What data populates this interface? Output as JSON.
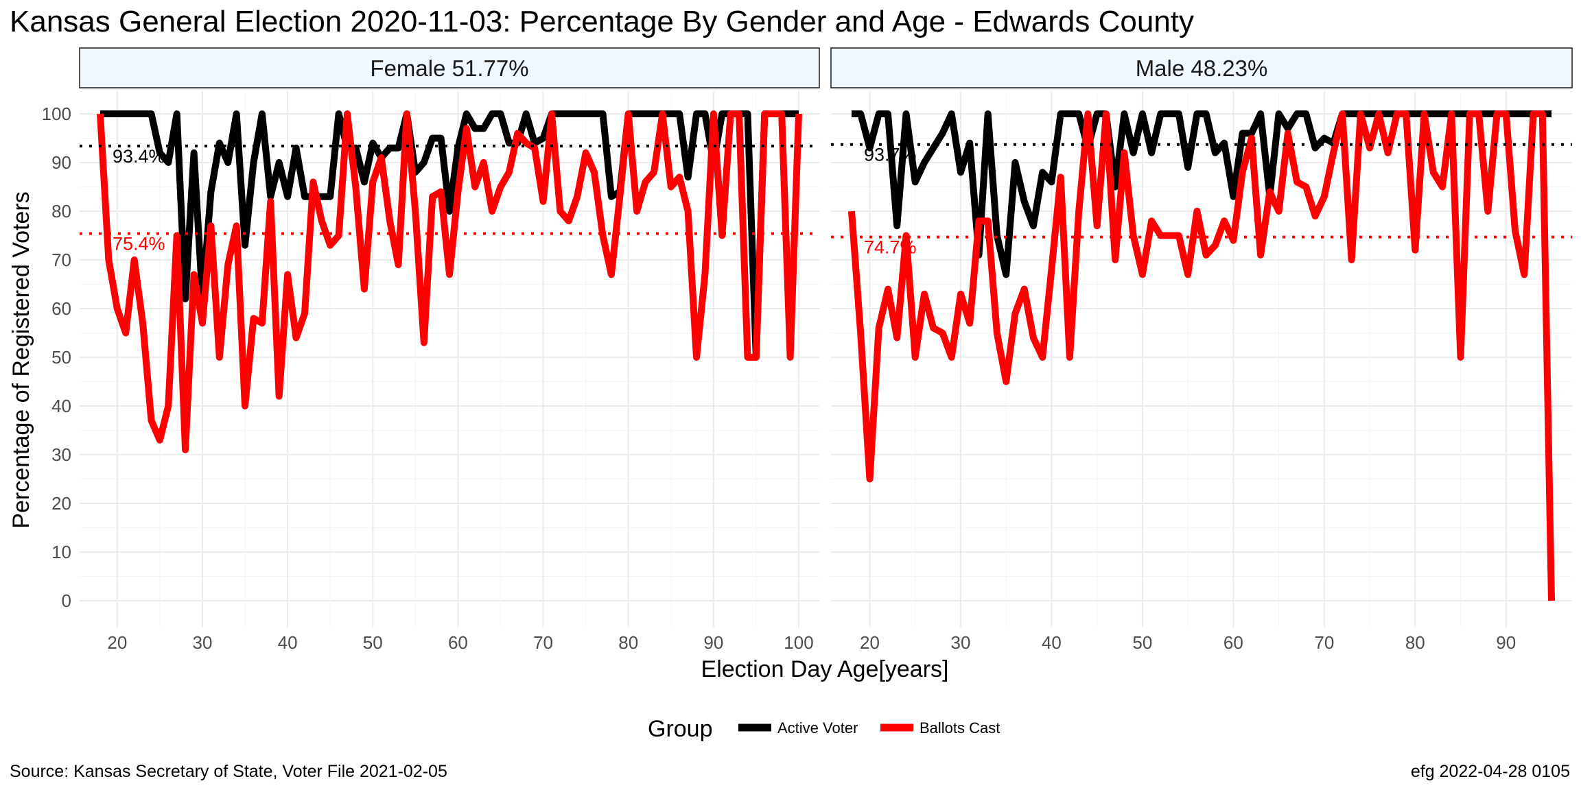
{
  "title": "Kansas General Election 2020-11-03:  Percentage By Gender and Age - Edwards County",
  "caption_left": "Source:  Kansas Secretary of State, Voter File  2021-02-05",
  "caption_right": "efg 2022-04-28 0105",
  "colors": {
    "active": "#000000",
    "ballots": "#ff0000",
    "strip_fill": "#f0f8ff",
    "grid": "#ebebeb"
  },
  "chart_data": {
    "type": "line",
    "xlabel": "Election Day Age[years]",
    "ylabel": "Percentage of Registered Voters",
    "ylim": [
      0,
      100
    ],
    "yticks": [
      0,
      10,
      20,
      30,
      40,
      50,
      60,
      70,
      80,
      90,
      100
    ],
    "grid": true,
    "legend": {
      "title": "Group",
      "position": "bottom",
      "items": [
        {
          "label": "Active Voter",
          "color": "#000000"
        },
        {
          "label": "Ballots Cast",
          "color": "#ff0000"
        }
      ]
    },
    "panels": [
      {
        "strip": "Female 51.77%",
        "xlim": [
          18,
          100
        ],
        "xticks": [
          20,
          30,
          40,
          50,
          60,
          70,
          80,
          90,
          100
        ],
        "ref_lines": [
          {
            "series": "Active Voter",
            "value": 93.4,
            "label": "93.4%"
          },
          {
            "series": "Ballots Cast",
            "value": 75.4,
            "label": "75.4%"
          }
        ],
        "series": [
          {
            "name": "Active Voter",
            "x": [
              18,
              19,
              20,
              21,
              22,
              23,
              24,
              25,
              26,
              27,
              28,
              29,
              30,
              31,
              32,
              33,
              34,
              35,
              36,
              37,
              38,
              39,
              40,
              41,
              42,
              43,
              44,
              45,
              46,
              47,
              48,
              49,
              50,
              51,
              52,
              53,
              54,
              55,
              56,
              57,
              58,
              59,
              60,
              61,
              62,
              63,
              64,
              65,
              66,
              67,
              68,
              69,
              70,
              71,
              72,
              73,
              74,
              75,
              76,
              77,
              78,
              79,
              80,
              81,
              82,
              83,
              84,
              85,
              86,
              87,
              88,
              89,
              90,
              91,
              92,
              93,
              94,
              95,
              96,
              97,
              98,
              99,
              100
            ],
            "y": [
              100,
              100,
              100,
              100,
              100,
              100,
              100,
              92,
              90,
              100,
              62,
              92,
              62,
              84,
              94,
              90,
              100,
              73,
              90,
              100,
              83,
              90,
              83,
              93,
              83,
              83,
              83,
              83,
              100,
              93,
              93,
              86,
              94,
              91,
              93,
              93,
              100,
              88,
              90,
              95,
              95,
              80,
              93,
              100,
              97,
              97,
              100,
              100,
              94,
              94,
              100,
              94,
              95,
              100,
              100,
              100,
              100,
              100,
              100,
              100,
              83,
              84,
              100,
              100,
              100,
              100,
              100,
              100,
              100,
              87,
              100,
              100,
              90,
              100,
              100,
              100,
              100,
              50,
              100,
              100,
              100,
              100,
              100
            ]
          },
          {
            "name": "Ballots Cast",
            "x": [
              18,
              19,
              20,
              21,
              22,
              23,
              24,
              25,
              26,
              27,
              28,
              29,
              30,
              31,
              32,
              33,
              34,
              35,
              36,
              37,
              38,
              39,
              40,
              41,
              42,
              43,
              44,
              45,
              46,
              47,
              48,
              49,
              50,
              51,
              52,
              53,
              54,
              55,
              56,
              57,
              58,
              59,
              60,
              61,
              62,
              63,
              64,
              65,
              66,
              67,
              68,
              69,
              70,
              71,
              72,
              73,
              74,
              75,
              76,
              77,
              78,
              79,
              80,
              81,
              82,
              83,
              84,
              85,
              86,
              87,
              88,
              89,
              90,
              91,
              92,
              93,
              94,
              95,
              96,
              97,
              98,
              99,
              100
            ],
            "y": [
              100,
              70,
              60,
              55,
              70,
              57,
              37,
              33,
              40,
              75,
              31,
              67,
              57,
              77,
              50,
              69,
              77,
              40,
              58,
              57,
              82,
              42,
              67,
              54,
              59,
              86,
              78,
              73,
              75,
              100,
              85,
              64,
              86,
              91,
              78,
              69,
              100,
              80,
              53,
              83,
              84,
              67,
              84,
              97,
              85,
              90,
              80,
              85,
              88,
              96,
              94,
              93,
              82,
              100,
              80,
              78,
              83,
              92,
              88,
              75,
              67,
              83,
              100,
              80,
              86,
              88,
              100,
              85,
              87,
              80,
              50,
              67,
              100,
              75,
              100,
              100,
              50,
              50,
              100,
              100,
              100,
              50,
              100
            ]
          }
        ]
      },
      {
        "strip": "Male 48.23%",
        "xlim": [
          18,
          95
        ],
        "xticks": [
          20,
          30,
          40,
          50,
          60,
          70,
          80,
          90
        ],
        "ref_lines": [
          {
            "series": "Active Voter",
            "value": 93.7,
            "label": "93.7%"
          },
          {
            "series": "Ballots Cast",
            "value": 74.7,
            "label": "74.7%"
          }
        ],
        "series": [
          {
            "name": "Active Voter",
            "x": [
              18,
              19,
              20,
              21,
              22,
              23,
              24,
              25,
              26,
              27,
              28,
              29,
              30,
              31,
              32,
              33,
              34,
              35,
              36,
              37,
              38,
              39,
              40,
              41,
              42,
              43,
              44,
              45,
              46,
              47,
              48,
              49,
              50,
              51,
              52,
              53,
              54,
              55,
              56,
              57,
              58,
              59,
              60,
              61,
              62,
              63,
              64,
              65,
              66,
              67,
              68,
              69,
              70,
              71,
              72,
              73,
              74,
              75,
              76,
              77,
              78,
              79,
              80,
              81,
              82,
              83,
              84,
              85,
              86,
              87,
              88,
              89,
              90,
              91,
              92,
              93,
              94,
              95
            ],
            "y": [
              100,
              100,
              93,
              100,
              100,
              77,
              100,
              86,
              90,
              93,
              96,
              100,
              88,
              94,
              71,
              100,
              75,
              67,
              90,
              82,
              77,
              88,
              86,
              100,
              100,
              100,
              93,
              100,
              100,
              85,
              100,
              92,
              100,
              92,
              100,
              100,
              100,
              89,
              100,
              100,
              92,
              94,
              83,
              96,
              96,
              100,
              83,
              100,
              97,
              100,
              100,
              93,
              95,
              94,
              100,
              100,
              100,
              100,
              100,
              100,
              100,
              100,
              100,
              100,
              100,
              100,
              100,
              100,
              100,
              100,
              100,
              100,
              100,
              100,
              100,
              100,
              100,
              100
            ]
          },
          {
            "name": "Ballots Cast",
            "x": [
              18,
              19,
              20,
              21,
              22,
              23,
              24,
              25,
              26,
              27,
              28,
              29,
              30,
              31,
              32,
              33,
              34,
              35,
              36,
              37,
              38,
              39,
              40,
              41,
              42,
              43,
              44,
              45,
              46,
              47,
              48,
              49,
              50,
              51,
              52,
              53,
              54,
              55,
              56,
              57,
              58,
              59,
              60,
              61,
              62,
              63,
              64,
              65,
              66,
              67,
              68,
              69,
              70,
              71,
              72,
              73,
              74,
              75,
              76,
              77,
              78,
              79,
              80,
              81,
              82,
              83,
              84,
              85,
              86,
              87,
              88,
              89,
              90,
              91,
              92,
              93,
              94,
              95
            ],
            "y": [
              80,
              55,
              25,
              56,
              64,
              54,
              75,
              50,
              63,
              56,
              55,
              50,
              63,
              57,
              78,
              78,
              55,
              45,
              59,
              64,
              54,
              50,
              68,
              87,
              50,
              80,
              100,
              77,
              100,
              70,
              92,
              75,
              67,
              78,
              75,
              75,
              75,
              67,
              80,
              71,
              73,
              78,
              74,
              88,
              95,
              71,
              84,
              80,
              96,
              86,
              85,
              79,
              83,
              92,
              100,
              70,
              100,
              93,
              100,
              92,
              100,
              100,
              72,
              100,
              88,
              85,
              100,
              50,
              100,
              100,
              80,
              100,
              100,
              76,
              67,
              100,
              100,
              0
            ]
          }
        ]
      }
    ]
  }
}
